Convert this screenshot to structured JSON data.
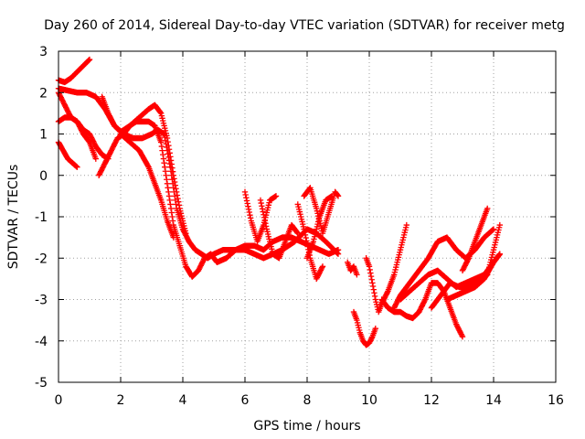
{
  "chart_data": {
    "type": "scatter",
    "title": "Day 260 of 2014, Sidereal Day-to-day VTEC variation (SDTVAR) for receiver metg",
    "xlabel": "GPS time / hours",
    "ylabel": "SDTVAR / TECUs",
    "xlim": [
      0,
      16
    ],
    "ylim": [
      -5,
      3
    ],
    "xticks": [
      0,
      2,
      4,
      6,
      8,
      10,
      12,
      14,
      16
    ],
    "yticks": [
      -5,
      -4,
      -3,
      -2,
      -1,
      0,
      1,
      2,
      3
    ],
    "grid": true,
    "marker": "+",
    "color": "#ff0000",
    "series": [
      {
        "x": [
          0.0,
          0.2,
          0.4,
          0.6,
          0.8,
          1.0
        ],
        "y": [
          2.3,
          2.25,
          2.35,
          2.5,
          2.65,
          2.8
        ]
      },
      {
        "x": [
          0.0,
          0.3,
          0.6,
          0.9,
          1.2,
          1.5,
          1.8,
          2.1,
          2.4,
          2.7,
          3.0,
          3.2,
          3.4,
          3.6,
          3.8,
          4.0,
          4.2,
          4.4,
          4.6,
          4.8,
          5.0,
          5.3,
          5.6,
          6.0,
          6.3,
          6.6,
          6.9,
          7.2,
          7.6,
          8.0,
          8.3,
          8.6,
          9.0
        ],
        "y": [
          2.1,
          2.05,
          2.0,
          2.0,
          1.9,
          1.6,
          1.2,
          1.0,
          0.9,
          0.9,
          1.0,
          1.1,
          1.0,
          0.2,
          -0.8,
          -1.3,
          -1.6,
          -1.8,
          -1.9,
          -2.0,
          -1.9,
          -1.8,
          -1.8,
          -1.8,
          -1.9,
          -2.0,
          -1.9,
          -1.8,
          -1.6,
          -1.3,
          -1.4,
          -1.6,
          -1.9
        ]
      },
      {
        "x": [
          1.3,
          1.5,
          1.7,
          1.9,
          2.1,
          2.3,
          2.5,
          2.7,
          2.9,
          3.1,
          3.3,
          3.5,
          3.7,
          3.9,
          4.1,
          4.3,
          4.5,
          4.7,
          4.9,
          5.1,
          5.4,
          5.7,
          6.0,
          6.3,
          6.6,
          6.9,
          7.2,
          7.5,
          7.8,
          8.1,
          8.4,
          8.7,
          9.0
        ],
        "y": [
          0.0,
          0.3,
          0.6,
          0.9,
          1.0,
          1.2,
          1.3,
          1.3,
          1.3,
          1.2,
          0.8,
          -0.2,
          -1.2,
          -1.7,
          -2.2,
          -2.45,
          -2.3,
          -2.0,
          -1.9,
          -2.1,
          -2.0,
          -1.8,
          -1.7,
          -1.7,
          -1.8,
          -1.6,
          -1.5,
          -1.5,
          -1.6,
          -1.7,
          -1.8,
          -1.9,
          -1.8
        ]
      },
      {
        "x": [
          0.0,
          0.2,
          0.4,
          0.6,
          0.8,
          1.0,
          1.2,
          1.4,
          1.6
        ],
        "y": [
          2.0,
          1.7,
          1.4,
          1.3,
          1.1,
          1.0,
          0.7,
          0.5,
          0.4
        ]
      },
      {
        "x": [
          0.0,
          0.2,
          0.4,
          0.6,
          0.8,
          1.0,
          1.2
        ],
        "y": [
          1.3,
          1.4,
          1.4,
          1.3,
          1.0,
          0.8,
          0.4
        ]
      },
      {
        "x": [
          0.0,
          0.15,
          0.3,
          0.45,
          0.6
        ],
        "y": [
          0.8,
          0.6,
          0.4,
          0.3,
          0.2
        ]
      },
      {
        "x": [
          1.4,
          1.6,
          1.8,
          2.0,
          2.3,
          2.6,
          2.9,
          3.1,
          3.3,
          3.5,
          3.7,
          3.9,
          4.1
        ],
        "y": [
          1.9,
          1.5,
          1.2,
          1.05,
          1.2,
          1.4,
          1.6,
          1.7,
          1.5,
          0.9,
          0.0,
          -0.8,
          -1.4
        ]
      },
      {
        "x": [
          2.0,
          2.3,
          2.6,
          2.9,
          3.1,
          3.3,
          3.5,
          3.7
        ],
        "y": [
          1.0,
          0.8,
          0.6,
          0.2,
          -0.2,
          -0.6,
          -1.1,
          -1.5
        ]
      },
      {
        "x": [
          6.0,
          6.2,
          6.4,
          6.6,
          6.8,
          7.0
        ],
        "y": [
          -0.4,
          -1.1,
          -1.6,
          -1.2,
          -0.6,
          -0.5
        ]
      },
      {
        "x": [
          6.5,
          6.7,
          6.9,
          7.1,
          7.3,
          7.5,
          7.7
        ],
        "y": [
          -0.6,
          -1.3,
          -1.9,
          -2.0,
          -1.6,
          -1.2,
          -1.4
        ]
      },
      {
        "x": [
          7.7,
          7.9,
          8.1,
          8.3,
          8.5
        ],
        "y": [
          -0.7,
          -1.3,
          -2.0,
          -2.5,
          -2.2
        ]
      },
      {
        "x": [
          7.9,
          8.1,
          8.3,
          8.5,
          8.7,
          8.9,
          9.0
        ],
        "y": [
          -0.5,
          -0.3,
          -0.8,
          -1.4,
          -0.9,
          -0.4,
          -0.5
        ]
      },
      {
        "x": [
          8.0,
          8.2,
          8.4,
          8.6,
          8.8
        ],
        "y": [
          -2.0,
          -1.6,
          -1.0,
          -0.6,
          -0.5
        ]
      },
      {
        "x": [
          9.5,
          9.6,
          9.7,
          9.8,
          9.9,
          10.0,
          10.1,
          10.2
        ],
        "y": [
          -3.3,
          -3.5,
          -3.8,
          -4.0,
          -4.1,
          -4.05,
          -3.9,
          -3.7
        ]
      },
      {
        "x": [
          9.3,
          9.4,
          9.5,
          9.6
        ],
        "y": [
          -2.1,
          -2.3,
          -2.2,
          -2.4
        ]
      },
      {
        "x": [
          9.9,
          10.0,
          10.1,
          10.2,
          10.3,
          10.4,
          10.6,
          10.8,
          11.0,
          11.2
        ],
        "y": [
          -2.0,
          -2.2,
          -2.6,
          -3.0,
          -3.3,
          -3.1,
          -2.8,
          -2.4,
          -1.8,
          -1.2
        ]
      },
      {
        "x": [
          10.4,
          10.6,
          10.8,
          11.0,
          11.2,
          11.4,
          11.6,
          11.8,
          12.0,
          12.2,
          12.4,
          12.6,
          12.8,
          13.0
        ],
        "y": [
          -3.0,
          -3.2,
          -3.3,
          -3.3,
          -3.4,
          -3.45,
          -3.3,
          -3.0,
          -2.6,
          -2.6,
          -2.8,
          -3.2,
          -3.6,
          -3.9
        ]
      },
      {
        "x": [
          10.8,
          11.0,
          11.3,
          11.6,
          11.9,
          12.2,
          12.5,
          12.8,
          13.1,
          13.4,
          13.7,
          14.0
        ],
        "y": [
          -3.2,
          -2.9,
          -2.6,
          -2.3,
          -2.0,
          -1.6,
          -1.5,
          -1.8,
          -2.0,
          -1.8,
          -1.5,
          -1.3
        ]
      },
      {
        "x": [
          11.0,
          11.3,
          11.6,
          11.9,
          12.2,
          12.5,
          12.8,
          13.1,
          13.4,
          13.7,
          14.0,
          14.2
        ],
        "y": [
          -3.0,
          -2.8,
          -2.6,
          -2.4,
          -2.3,
          -2.5,
          -2.7,
          -2.6,
          -2.5,
          -2.4,
          -2.1,
          -1.9
        ]
      },
      {
        "x": [
          12.0,
          12.3,
          12.6,
          12.9,
          13.2,
          13.5,
          13.8,
          14.0,
          14.2
        ],
        "y": [
          -3.2,
          -2.9,
          -2.6,
          -2.7,
          -2.7,
          -2.6,
          -2.4,
          -1.8,
          -1.2
        ]
      },
      {
        "x": [
          12.5,
          12.8,
          13.1,
          13.4,
          13.7,
          14.0,
          14.2
        ],
        "y": [
          -3.0,
          -2.9,
          -2.8,
          -2.7,
          -2.5,
          -2.1,
          -1.9
        ]
      },
      {
        "x": [
          13.0,
          13.2,
          13.4,
          13.6,
          13.8
        ],
        "y": [
          -2.3,
          -2.0,
          -1.6,
          -1.2,
          -0.8
        ]
      }
    ]
  }
}
